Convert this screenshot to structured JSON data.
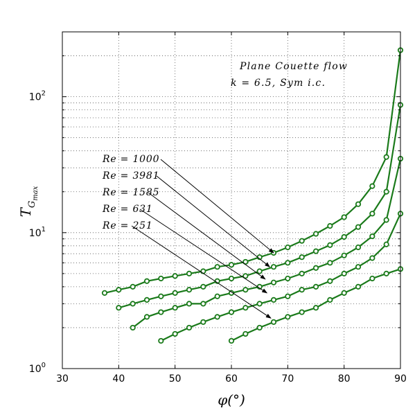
{
  "chart_data": {
    "type": "line",
    "title": "",
    "xlabel": "φ(°)",
    "ylabel": "T",
    "ylabel_subscript": "G",
    "ylabel_subsubscript": "max",
    "xlim": [
      30,
      90
    ],
    "ylim": [
      1,
      300
    ],
    "xscale": "linear",
    "yscale": "log",
    "grid": true,
    "legend": "none",
    "x_ticks": [
      30,
      40,
      50,
      60,
      70,
      80,
      90
    ],
    "x_tick_labels": [
      "30",
      "40",
      "50",
      "60",
      "70",
      "80",
      "90"
    ],
    "y_ticks": [
      1,
      10,
      100
    ],
    "y_tick_base": "10",
    "y_tick_exponents": [
      "0",
      "1",
      "2"
    ],
    "annotation_line1": "Plane Couette flow",
    "annotation_line2": "k = 6.5,  Sym i.c.",
    "line_color": "#1a7a1a",
    "series": [
      {
        "name": "Re = 3981",
        "x": [
          37.5,
          40,
          42.5,
          45,
          47.5,
          50,
          52.5,
          55,
          57.5,
          60,
          62.5,
          65,
          67.5,
          70,
          72.5,
          75,
          77.5,
          80,
          82.5,
          85,
          87.5,
          90
        ],
        "y": [
          3.6,
          3.8,
          4.0,
          4.4,
          4.6,
          4.8,
          5.0,
          5.2,
          5.6,
          5.8,
          6.1,
          6.6,
          7.1,
          7.8,
          8.7,
          9.8,
          11.2,
          13.0,
          16.2,
          22.0,
          36.0,
          220.0
        ]
      },
      {
        "name": "Re = 1585",
        "x": [
          40,
          42.5,
          45,
          47.5,
          50,
          52.5,
          55,
          57.5,
          60,
          62.5,
          65,
          67.5,
          70,
          72.5,
          75,
          77.5,
          80,
          82.5,
          85,
          87.5,
          90
        ],
        "y": [
          2.8,
          3.0,
          3.2,
          3.4,
          3.6,
          3.8,
          4.0,
          4.4,
          4.6,
          4.8,
          5.2,
          5.6,
          6.0,
          6.6,
          7.3,
          8.1,
          9.3,
          11.0,
          13.8,
          20.0,
          87.0
        ]
      },
      {
        "name": "Re = 1000",
        "x": [
          42.5,
          45,
          47.5,
          50,
          52.5,
          55,
          57.5,
          60,
          62.5,
          65,
          67.5,
          70,
          72.5,
          75,
          77.5,
          80,
          82.5,
          85,
          87.5,
          90
        ],
        "y": [
          2.0,
          2.4,
          2.6,
          2.8,
          3.0,
          3.0,
          3.4,
          3.6,
          3.8,
          4.0,
          4.3,
          4.6,
          5.0,
          5.5,
          6.0,
          6.8,
          7.8,
          9.4,
          12.4,
          35.0
        ]
      },
      {
        "name": "Re = 631",
        "x": [
          47.5,
          50,
          52.5,
          55,
          57.5,
          60,
          62.5,
          65,
          67.5,
          70,
          72.5,
          75,
          77.5,
          80,
          82.5,
          85,
          87.5,
          90
        ],
        "y": [
          1.6,
          1.8,
          2.0,
          2.2,
          2.4,
          2.6,
          2.8,
          3.0,
          3.2,
          3.4,
          3.8,
          4.0,
          4.4,
          5.0,
          5.6,
          6.5,
          8.2,
          13.8
        ]
      },
      {
        "name": "Re = 251",
        "x": [
          60,
          62.5,
          65,
          67.5,
          70,
          72.5,
          75,
          77.5,
          80,
          82.5,
          85,
          87.5,
          90
        ],
        "y": [
          1.6,
          1.8,
          2.0,
          2.2,
          2.4,
          2.6,
          2.8,
          3.2,
          3.6,
          4.0,
          4.6,
          5.0,
          5.4
        ]
      }
    ],
    "re_labels": [
      {
        "text": "Re = 1000",
        "series": "Re = 1000",
        "arrow_to_x": 67.5,
        "arrow_to_y": 7.1
      },
      {
        "text": "Re = 3981",
        "series": "Re = 3981",
        "arrow_to_x": 66.8,
        "arrow_to_y": 5.6
      },
      {
        "text": "Re = 1585",
        "series": "Re = 1585",
        "arrow_to_x": 66.0,
        "arrow_to_y": 4.55
      },
      {
        "text": "Re = 631",
        "series": "Re = 631",
        "arrow_to_x": 66.3,
        "arrow_to_y": 3.6
      },
      {
        "text": "Re = 251",
        "series": "Re = 251",
        "arrow_to_x": 67.0,
        "arrow_to_y": 2.35
      }
    ]
  }
}
